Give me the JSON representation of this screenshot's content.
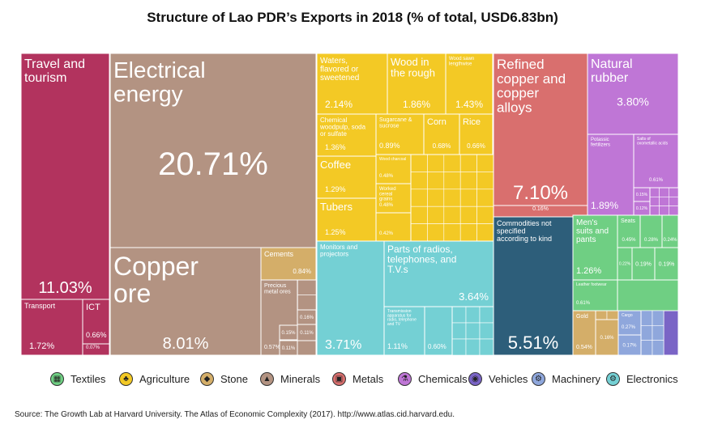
{
  "title": "Structure of Lao PDR’s Exports in 2018 (% of total, USD6.83bn)",
  "source": "Source: The Growth Lab at Harvard University. The Atlas of Economic Complexity (2017). http://www.atlas.cid.harvard.edu.",
  "colors": {
    "services": "#b2335e",
    "minerals": "#b39382",
    "agriculture": "#f3c925",
    "electronics": "#74d0d4",
    "metals": "#d96f6e",
    "chemicals": "#bf76d6",
    "commodities": "#2d5e7a",
    "textiles": "#6fcf83",
    "stone": "#d4ae69",
    "machinery": "#8fa7dc",
    "vehicles": "#7a64c6"
  },
  "legend": [
    {
      "label": "Textiles",
      "icon": "textiles-icon",
      "color": "#6fcf83",
      "glyph": "▦"
    },
    {
      "label": "Agriculture",
      "icon": "agriculture-icon",
      "color": "#f3c925",
      "glyph": "♣"
    },
    {
      "label": "Stone",
      "icon": "stone-icon",
      "color": "#d4ae69",
      "glyph": "◆"
    },
    {
      "label": "Minerals",
      "icon": "minerals-icon",
      "color": "#b39382",
      "glyph": "▲"
    },
    {
      "label": "Metals",
      "icon": "metals-icon",
      "color": "#d96f6e",
      "glyph": "▣"
    },
    {
      "label": "Chemicals",
      "icon": "chemicals-icon",
      "color": "#bf76d6",
      "glyph": "⚗"
    },
    {
      "label": "Vehicles",
      "icon": "vehicles-icon",
      "color": "#7a64c6",
      "glyph": "◉"
    },
    {
      "label": "Machinery",
      "icon": "machinery-icon",
      "color": "#8fa7dc",
      "glyph": "⚙"
    },
    {
      "label": "Electronics",
      "icon": "electronics-icon",
      "color": "#74d0d4",
      "glyph": "⚙"
    }
  ],
  "chart_data": {
    "type": "treemap",
    "title": "Structure of Lao PDR’s Exports in 2018 (% of total, USD6.83bn)",
    "unit": "% of total",
    "tiles": [
      {
        "name": "Travel and tourism",
        "value": 11.03,
        "group": "services",
        "value_label": "11.03%"
      },
      {
        "name": "Transport",
        "value": 1.72,
        "group": "services",
        "value_label": "1.72%"
      },
      {
        "name": "ICT",
        "value": 0.66,
        "group": "services",
        "value_label": "0.66%"
      },
      {
        "name": "",
        "value": 0.07,
        "group": "services",
        "value_label": "0.07%"
      },
      {
        "name": "Electrical energy",
        "value": 20.71,
        "group": "minerals",
        "value_label": "20.71%"
      },
      {
        "name": "Copper ore",
        "value": 8.01,
        "group": "minerals",
        "value_label": "8.01%"
      },
      {
        "name": "Cements",
        "value": 0.84,
        "group": "stone",
        "value_label": "0.84%"
      },
      {
        "name": "Precious metal ores",
        "value": 0.57,
        "group": "minerals",
        "value_label": "0.57%"
      },
      {
        "name": "",
        "value": 0.16,
        "group": "minerals",
        "value_label": "0.16%"
      },
      {
        "name": "",
        "value": 0.15,
        "group": "minerals",
        "value_label": "0.15%"
      },
      {
        "name": "",
        "value": 0.11,
        "group": "minerals",
        "value_label": "0.11%"
      },
      {
        "name": "",
        "value": 0.11,
        "group": "minerals",
        "value_label": "0.11%"
      },
      {
        "name": "Waters, flavored or sweetened",
        "value": 2.14,
        "group": "agriculture",
        "value_label": "2.14%"
      },
      {
        "name": "Wood in the rough",
        "value": 1.86,
        "group": "agriculture",
        "value_label": "1.86%"
      },
      {
        "name": "Wood sawn lengthwise",
        "value": 1.43,
        "group": "agriculture",
        "value_label": "1.43%"
      },
      {
        "name": "Chemical woodpulp, soda or sulfate",
        "value": 1.36,
        "group": "agriculture",
        "value_label": "1.36%"
      },
      {
        "name": "Sugarcane & sucrose",
        "value": 0.89,
        "group": "agriculture",
        "value_label": "0.89%"
      },
      {
        "name": "Corn",
        "value": 0.68,
        "group": "agriculture",
        "value_label": "0.68%"
      },
      {
        "name": "Rice",
        "value": 0.66,
        "group": "agriculture",
        "value_label": "0.66%"
      },
      {
        "name": "Coffee",
        "value": 1.29,
        "group": "agriculture",
        "value_label": "1.29%"
      },
      {
        "name": "Tubers",
        "value": 1.25,
        "group": "agriculture",
        "value_label": "1.25%"
      },
      {
        "name": "Wood charcoal",
        "value": 0.48,
        "group": "agriculture",
        "value_label": "0.48%"
      },
      {
        "name": "Worked cereal grains",
        "value": 0.48,
        "group": "agriculture",
        "value_label": "0.48%"
      },
      {
        "name": "",
        "value": 0.42,
        "group": "agriculture",
        "value_label": "0.42%"
      },
      {
        "name": "Monitors and projectors",
        "value": 3.71,
        "group": "electronics",
        "value_label": "3.71%"
      },
      {
        "name": "Parts of radios, telephones, and T.V.s",
        "value": 3.64,
        "group": "electronics",
        "value_label": "3.64%"
      },
      {
        "name": "Transmission apparatus for radio, telephone and TV",
        "value": 1.11,
        "group": "electronics",
        "value_label": "1.11%"
      },
      {
        "name": "",
        "value": 0.6,
        "group": "electronics",
        "value_label": "0.60%"
      },
      {
        "name": "Refined copper and copper alloys",
        "value": 7.1,
        "group": "metals",
        "value_label": "7.10%"
      },
      {
        "name": "",
        "value": 0.16,
        "group": "metals",
        "value_label": "0.16%"
      },
      {
        "name": "Commodities not specified according to kind",
        "value": 5.51,
        "group": "commodities",
        "value_label": "5.51%"
      },
      {
        "name": "Natural rubber",
        "value": 3.8,
        "group": "chemicals",
        "value_label": "3.80%"
      },
      {
        "name": "Potassic fertilizers",
        "value": 1.89,
        "group": "chemicals",
        "value_label": "1.89%"
      },
      {
        "name": "Salts of oxometallic acids",
        "value": 0.61,
        "group": "chemicals",
        "value_label": "0.61%"
      },
      {
        "name": "",
        "value": 0.15,
        "group": "chemicals",
        "value_label": "0.15%"
      },
      {
        "name": "",
        "value": 0.12,
        "group": "chemicals",
        "value_label": "0.12%"
      },
      {
        "name": "Men's suits and pants",
        "value": 1.26,
        "group": "textiles",
        "value_label": "1.26%"
      },
      {
        "name": "Seats",
        "value": 0.45,
        "group": "textiles",
        "value_label": "0.45%"
      },
      {
        "name": "",
        "value": 0.28,
        "group": "textiles",
        "value_label": "0.28%"
      },
      {
        "name": "",
        "value": 0.24,
        "group": "textiles",
        "value_label": "0.24%"
      },
      {
        "name": "",
        "value": 0.19,
        "group": "textiles",
        "value_label": "0.19%"
      },
      {
        "name": "",
        "value": 0.19,
        "group": "textiles",
        "value_label": "0.19%"
      },
      {
        "name": "Leather footwear",
        "value": 0.61,
        "group": "textiles",
        "value_label": "0.61%"
      },
      {
        "name": "",
        "value": 0.22,
        "group": "textiles",
        "value_label": "0.22%"
      },
      {
        "name": "Gold",
        "value": 0.54,
        "group": "stone",
        "value_label": "0.54%"
      },
      {
        "name": "",
        "value": 0.16,
        "group": "stone",
        "value_label": "0.16%"
      },
      {
        "name": "Cargo",
        "value": 0.27,
        "group": "machinery",
        "value_label": "0.27%"
      },
      {
        "name": "",
        "value": 0.17,
        "group": "machinery",
        "value_label": "0.17%"
      }
    ]
  }
}
